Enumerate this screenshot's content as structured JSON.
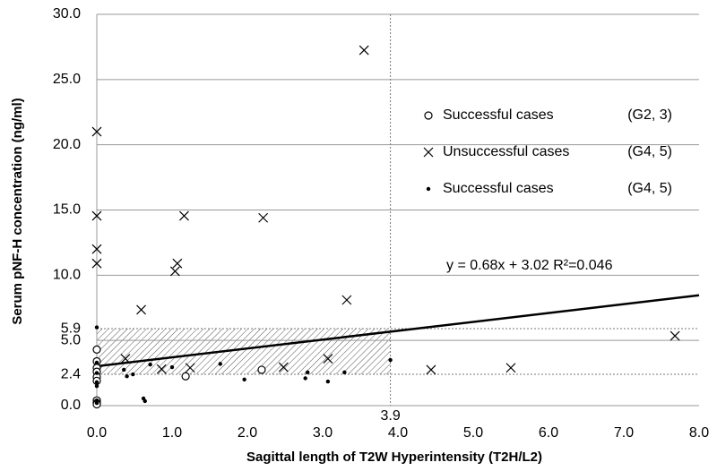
{
  "chart_data": {
    "type": "scatter",
    "xlabel": "Sagittal length of T2W Hyperintensity (T2H/L2)",
    "ylabel": "Serum pNF-H concentration (ng/ml)",
    "xlim": [
      0,
      8
    ],
    "ylim": [
      0,
      30
    ],
    "xticks": [
      {
        "value": 0,
        "label": "0.0"
      },
      {
        "value": 1,
        "label": "1.0"
      },
      {
        "value": 2,
        "label": "2.0"
      },
      {
        "value": 3,
        "label": "3.0"
      },
      {
        "value": 4,
        "label": "4.0"
      },
      {
        "value": 5,
        "label": "5.0"
      },
      {
        "value": 6,
        "label": "6.0"
      },
      {
        "value": 7,
        "label": "7.0"
      },
      {
        "value": 8,
        "label": "8.0"
      }
    ],
    "yticks": [
      {
        "value": 0,
        "label": "0.0"
      },
      {
        "value": 5,
        "label": "5.0"
      },
      {
        "value": 10,
        "label": "10.0"
      },
      {
        "value": 15,
        "label": "15.0"
      },
      {
        "value": 20,
        "label": "20.0"
      },
      {
        "value": 25,
        "label": "25.0"
      },
      {
        "value": 30,
        "label": "30.0"
      }
    ],
    "grid": true,
    "reference_lines": {
      "x": [
        3.9
      ],
      "y": [
        5.9,
        2.4
      ]
    },
    "trendline": {
      "slope": 0.68,
      "intercept": 3.02,
      "label": "y = 0.68x + 3.02   R²=0.046"
    },
    "series": [
      {
        "name": "Successful cases",
        "group": "(G2, 3)",
        "marker": "circle",
        "color": "#000000",
        "x": [
          0,
          0,
          0,
          0,
          0,
          0,
          0,
          0,
          0,
          1.18,
          2.19
        ],
        "values": [
          4.3,
          3.4,
          2.9,
          2.6,
          2.2,
          1.9,
          0.4,
          0.2,
          0.1,
          2.25,
          2.75
        ]
      },
      {
        "name": "Unsuccessful cases",
        "group": "(G4, 5)",
        "marker": "x",
        "color": "#000000",
        "x": [
          0,
          0,
          0,
          0,
          3.55,
          0.59,
          1.04,
          1.07,
          1.16,
          2.21,
          3.32,
          3.07,
          2.48,
          1.24,
          0.86,
          0.38,
          4.44,
          5.5,
          7.68
        ],
        "values": [
          21.0,
          14.55,
          12.0,
          10.9,
          27.25,
          7.35,
          10.3,
          10.9,
          14.55,
          14.4,
          8.1,
          3.6,
          2.95,
          2.9,
          2.8,
          3.6,
          2.75,
          2.9,
          5.35
        ]
      },
      {
        "name": "Successful cases",
        "group": "(G4, 5)",
        "marker": "dot",
        "color": "#000000",
        "x": [
          0,
          0,
          0,
          0,
          0,
          0,
          0,
          0.36,
          0.4,
          0.48,
          0.71,
          0.62,
          0.64,
          1.64,
          1.96,
          2.8,
          2.77,
          3.07,
          3.29,
          3.9,
          1.0
        ],
        "values": [
          6.0,
          3.3,
          2.5,
          1.8,
          1.5,
          0.4,
          0.2,
          2.75,
          2.25,
          2.4,
          3.15,
          0.55,
          0.35,
          3.2,
          2.0,
          2.55,
          2.1,
          1.85,
          2.55,
          3.5,
          2.95
        ]
      }
    ]
  }
}
